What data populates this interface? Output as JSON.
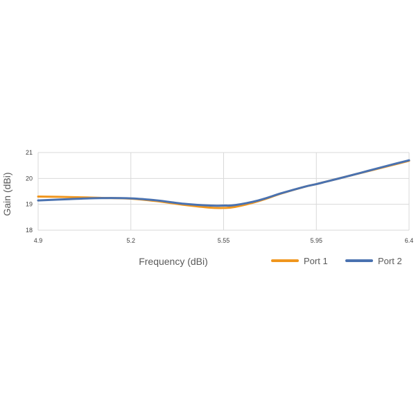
{
  "chart_data": {
    "type": "line",
    "title": "",
    "xlabel": "Frequency (dBi)",
    "ylabel": "Gain (dBi)",
    "x_ticks": [
      "4.9",
      "5.2",
      "5.55",
      "5.95",
      "6.4"
    ],
    "y_ticks": [
      "18",
      "19",
      "20",
      "21"
    ],
    "xlim": [
      4.9,
      6.4
    ],
    "ylim": [
      18,
      21
    ],
    "grid": true,
    "legend_position": "bottom-right",
    "series": [
      {
        "name": "Port 1",
        "color": "#f0961e",
        "x": [
          4.9,
          5.0,
          5.1,
          5.2,
          5.3,
          5.4,
          5.5,
          5.55,
          5.6,
          5.7,
          5.8,
          5.9,
          5.95,
          6.0,
          6.1,
          6.2,
          6.3,
          6.4
        ],
        "y": [
          19.3,
          19.28,
          19.25,
          19.22,
          19.12,
          18.98,
          18.87,
          18.86,
          18.9,
          19.12,
          19.42,
          19.68,
          19.78,
          19.88,
          20.08,
          20.28,
          20.48,
          20.68
        ]
      },
      {
        "name": "Port 2",
        "color": "#4a72b0",
        "x": [
          4.9,
          5.0,
          5.1,
          5.2,
          5.3,
          5.4,
          5.5,
          5.55,
          5.6,
          5.7,
          5.8,
          5.9,
          5.95,
          6.0,
          6.1,
          6.2,
          6.3,
          6.4
        ],
        "y": [
          19.15,
          19.2,
          19.24,
          19.23,
          19.15,
          19.02,
          18.95,
          18.95,
          18.97,
          19.15,
          19.43,
          19.68,
          19.78,
          19.88,
          20.08,
          20.29,
          20.5,
          20.7
        ]
      }
    ]
  }
}
